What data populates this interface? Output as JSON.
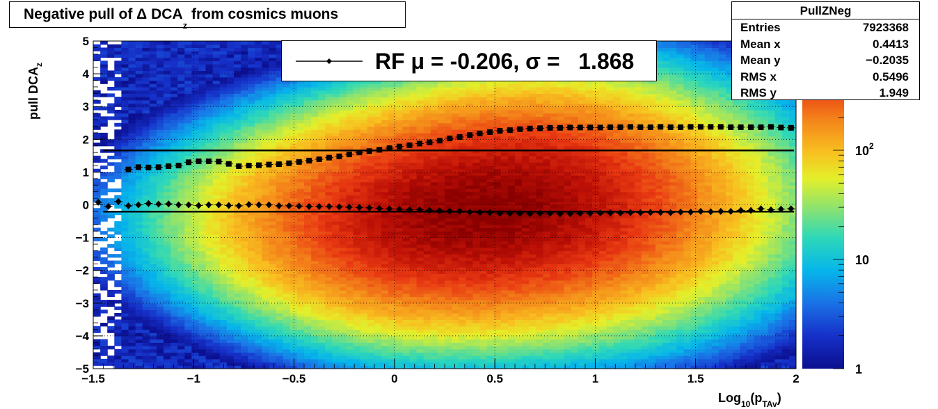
{
  "chart_data": {
    "type": "heatmap",
    "title": "Negative pull of Δ DCA",
    "title_subscript": "z",
    "title_suffix": " from cosmics muons",
    "xlabel": "Log",
    "xlabel_sub1": "10",
    "xlabel_mid": "(p",
    "xlabel_sub2": "TAv",
    "xlabel_end": ")",
    "ylabel": "pull DCA",
    "ylabel_sub": "z",
    "xlim": [
      -1.5,
      2
    ],
    "ylim": [
      -5,
      5
    ],
    "x_ticks": [
      -1.5,
      -1,
      -0.5,
      0,
      0.5,
      1,
      1.5,
      2
    ],
    "x_tick_labels": [
      "−1.5",
      "−1",
      "−0.5",
      "0",
      "0.5",
      "1",
      "1.5",
      "2"
    ],
    "y_ticks": [
      -5,
      -4,
      -3,
      -2,
      -1,
      0,
      1,
      2,
      3,
      4,
      5
    ],
    "y_tick_labels": [
      "−5",
      "−4",
      "−3",
      "−2",
      "−1",
      "0",
      "1",
      "2",
      "3",
      "4",
      "5"
    ],
    "grid": true,
    "colorbar": {
      "scale": "log",
      "min": 1,
      "max": 1000,
      "labels": [
        {
          "value": 1,
          "text": "1"
        },
        {
          "value": 10,
          "text": "10"
        },
        {
          "value": 100,
          "text": "10",
          "sup": "2"
        }
      ]
    },
    "stats": {
      "name": "PullZNeg",
      "rows": [
        {
          "key": "Entries",
          "value": "7923368"
        },
        {
          "key": "Mean x",
          "value": "0.4413"
        },
        {
          "key": "Mean y",
          "value": "−0.2035"
        },
        {
          "key": "RMS x",
          "value": "0.5496"
        },
        {
          "key": "RMS y",
          "value": "1.949"
        }
      ]
    },
    "legend": {
      "label": "RF μ = -0.206, σ =   1.868",
      "placement": "top-center"
    },
    "fit_lines": {
      "mean": -0.206,
      "sigma": 1.868
    },
    "series": [
      {
        "marker": "diamond",
        "x": [
          -1.475,
          -1.425,
          -1.375,
          -1.325,
          -1.275,
          -1.225,
          -1.175,
          -1.125,
          -1.075,
          -1.025,
          -0.975,
          -0.925,
          -0.875,
          -0.825,
          -0.775,
          -0.725,
          -0.675,
          -0.625,
          -0.575,
          -0.525,
          -0.475,
          -0.425,
          -0.375,
          -0.325,
          -0.275,
          -0.225,
          -0.175,
          -0.125,
          -0.075,
          -0.025,
          0.025,
          0.075,
          0.125,
          0.175,
          0.225,
          0.275,
          0.325,
          0.375,
          0.425,
          0.475,
          0.525,
          0.575,
          0.625,
          0.675,
          0.725,
          0.775,
          0.825,
          0.875,
          0.925,
          0.975,
          1.025,
          1.075,
          1.125,
          1.175,
          1.225,
          1.275,
          1.325,
          1.375,
          1.425,
          1.475,
          1.525,
          1.575,
          1.625,
          1.675,
          1.725,
          1.775,
          1.825,
          1.875,
          1.925,
          1.975
        ],
        "y": [
          0.08,
          -0.05,
          0.1,
          -0.03,
          0,
          0.04,
          0.02,
          0.03,
          0,
          0,
          -0.02,
          0,
          0,
          -0.02,
          -0.03,
          0.01,
          0,
          0,
          -0.03,
          -0.03,
          -0.04,
          -0.05,
          -0.05,
          -0.05,
          -0.06,
          -0.07,
          -0.08,
          -0.09,
          -0.11,
          -0.12,
          -0.14,
          -0.15,
          -0.15,
          -0.17,
          -0.18,
          -0.19,
          -0.2,
          -0.22,
          -0.23,
          -0.24,
          -0.26,
          -0.26,
          -0.26,
          -0.27,
          -0.26,
          -0.26,
          -0.27,
          -0.27,
          -0.26,
          -0.26,
          -0.25,
          -0.25,
          -0.25,
          -0.24,
          -0.24,
          -0.23,
          -0.23,
          -0.24,
          -0.22,
          -0.22,
          -0.2,
          -0.21,
          -0.2,
          -0.2,
          -0.17,
          -0.17,
          -0.12,
          -0.15,
          -0.13,
          -0.12
        ]
      },
      {
        "marker": "square",
        "x": [
          -1.325,
          -1.275,
          -1.225,
          -1.175,
          -1.125,
          -1.075,
          -1.025,
          -0.975,
          -0.925,
          -0.875,
          -0.825,
          -0.775,
          -0.725,
          -0.675,
          -0.625,
          -0.575,
          -0.525,
          -0.475,
          -0.425,
          -0.375,
          -0.325,
          -0.275,
          -0.225,
          -0.175,
          -0.125,
          -0.075,
          -0.025,
          0.025,
          0.075,
          0.125,
          0.175,
          0.225,
          0.275,
          0.325,
          0.375,
          0.425,
          0.475,
          0.525,
          0.575,
          0.625,
          0.675,
          0.725,
          0.775,
          0.825,
          0.875,
          0.925,
          0.975,
          1.025,
          1.075,
          1.125,
          1.175,
          1.225,
          1.275,
          1.325,
          1.375,
          1.425,
          1.475,
          1.525,
          1.575,
          1.625,
          1.675,
          1.725,
          1.775,
          1.825,
          1.875,
          1.925,
          1.975
        ],
        "y": [
          1.08,
          1.15,
          1.14,
          1.15,
          1.18,
          1.2,
          1.3,
          1.33,
          1.33,
          1.32,
          1.25,
          1.18,
          1.2,
          1.21,
          1.23,
          1.24,
          1.27,
          1.31,
          1.35,
          1.39,
          1.44,
          1.48,
          1.54,
          1.6,
          1.64,
          1.68,
          1.73,
          1.78,
          1.82,
          1.87,
          1.91,
          1.96,
          2.03,
          2.07,
          2.13,
          2.18,
          2.22,
          2.26,
          2.28,
          2.31,
          2.33,
          2.34,
          2.35,
          2.35,
          2.36,
          2.36,
          2.36,
          2.36,
          2.37,
          2.37,
          2.38,
          2.37,
          2.37,
          2.38,
          2.37,
          2.37,
          2.38,
          2.38,
          2.38,
          2.38,
          2.37,
          2.37,
          2.37,
          2.37,
          2.38,
          2.36,
          2.35
        ]
      }
    ]
  }
}
